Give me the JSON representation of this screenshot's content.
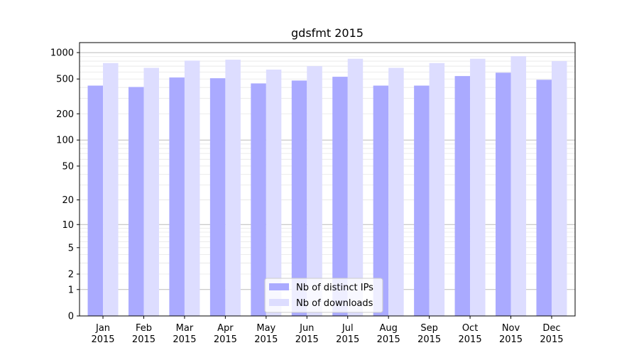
{
  "chart_data": {
    "type": "bar",
    "title": "gdsfmt 2015",
    "xlabel": "",
    "ylabel": "",
    "categories": [
      [
        "Jan",
        "2015"
      ],
      [
        "Feb",
        "2015"
      ],
      [
        "Mar",
        "2015"
      ],
      [
        "Apr",
        "2015"
      ],
      [
        "May",
        "2015"
      ],
      [
        "Jun",
        "2015"
      ],
      [
        "Jul",
        "2015"
      ],
      [
        "Aug",
        "2015"
      ],
      [
        "Sep",
        "2015"
      ],
      [
        "Oct",
        "2015"
      ],
      [
        "Nov",
        "2015"
      ],
      [
        "Dec",
        "2015"
      ]
    ],
    "series": [
      {
        "name": "Nb of distinct IPs",
        "color": "#aaaaff",
        "values": [
          420,
          405,
          520,
          510,
          445,
          480,
          530,
          420,
          420,
          540,
          590,
          490
        ]
      },
      {
        "name": "Nb of downloads",
        "color": "#ddddff",
        "values": [
          760,
          670,
          810,
          830,
          640,
          700,
          850,
          670,
          760,
          850,
          910,
          800
        ]
      }
    ],
    "yscale": "symlog",
    "ylim": [
      0,
      1300
    ],
    "yticks": [
      0,
      1,
      2,
      5,
      10,
      20,
      50,
      100,
      200,
      500,
      1000
    ],
    "ytick_labels": [
      "0",
      "1",
      "2",
      "5",
      "10",
      "20",
      "50",
      "100",
      "200",
      "500",
      "1000"
    ],
    "grid": true,
    "legend_position": "lower-center"
  }
}
